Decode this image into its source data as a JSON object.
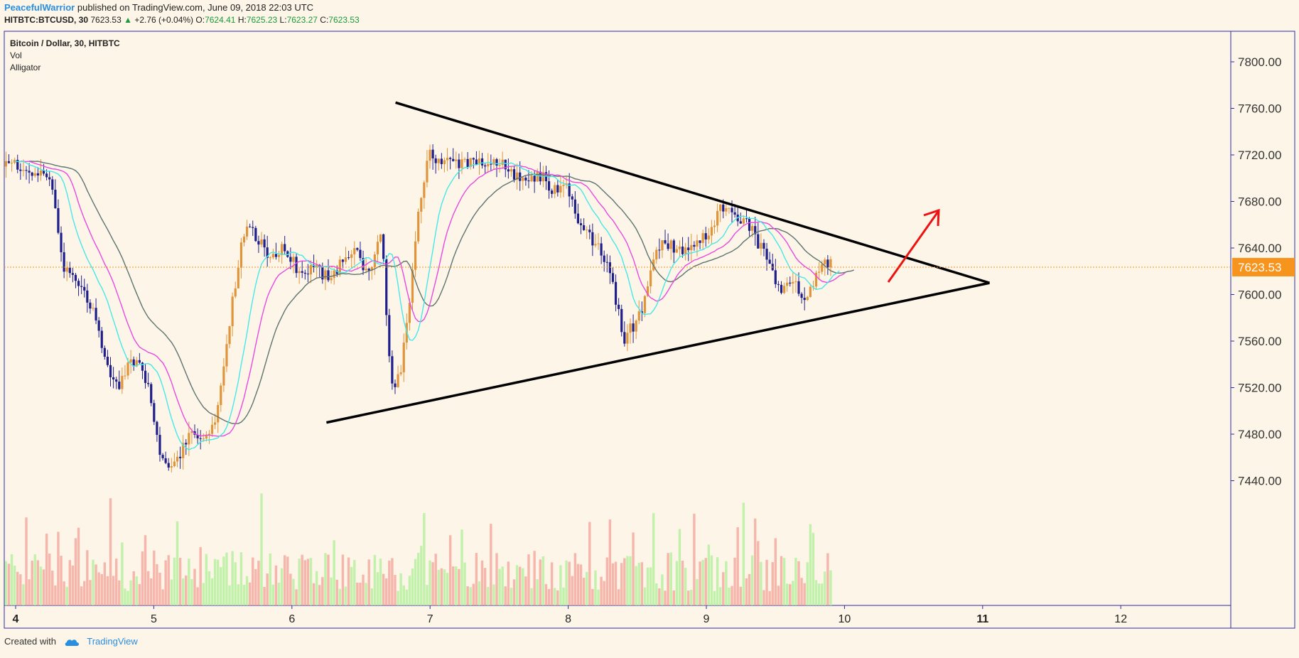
{
  "header": {
    "author": "PeacefulWarrior",
    "published": "published on TradingView.com, June 09, 2018 22:03 UTC",
    "symbol_line": "HITBTC:BTCUSD, 30",
    "last": "7623.53",
    "change": "+2.76 (+0.04%)",
    "o_label": "O:",
    "o": "7624.41",
    "h_label": "H:",
    "h": "7625.23",
    "l_label": "L:",
    "l": "7623.27",
    "c_label": "C:",
    "c": "7623.53"
  },
  "legend": {
    "title": "Bitcoin / Dollar, 30, HITBTC",
    "vol": "Vol",
    "indicator": "Alligator"
  },
  "footer": {
    "created_with": "Created with",
    "brand": "TradingView"
  },
  "colors": {
    "background": "#fdf5e8",
    "up": "#e0953a",
    "down": "#1f1f8c",
    "vol_up": "#b7f0a0",
    "vol_down": "#f5aaa0",
    "jaw": "#5d7470",
    "teeth": "#e84adf",
    "lips": "#46e8e8",
    "price_tag": "#f7941d",
    "arrow": "#ee1111",
    "frame": "#2a2aa8"
  },
  "chart_data": {
    "type": "candlestick",
    "title": "Bitcoin / Dollar, 30, HITBTC",
    "x_ticks": [
      "4",
      "5",
      "6",
      "7",
      "8",
      "9",
      "10",
      "11",
      "12"
    ],
    "y_ticks": [
      "7800.00",
      "7760.00",
      "7720.00",
      "7680.00",
      "7640.00",
      "7600.00",
      "7560.00",
      "7520.00",
      "7480.00",
      "7440.00"
    ],
    "y_tick_values": [
      7800,
      7760,
      7720,
      7680,
      7640,
      7600,
      7560,
      7520,
      7480,
      7440
    ],
    "ylim": [
      7410,
      7820
    ],
    "xlim": [
      3.93,
      12.8
    ],
    "current_price": 7623.53,
    "current_price_label": "7623.53",
    "indicators": [
      "Vol",
      "Alligator"
    ],
    "close_path_days": [
      3.93,
      4.05,
      4.15,
      4.25,
      4.35,
      4.45,
      4.55,
      4.65,
      4.75,
      4.85,
      4.95,
      5.05,
      5.15,
      5.25,
      5.35,
      5.45,
      5.55,
      5.65,
      5.75,
      5.85,
      5.95,
      6.05,
      6.15,
      6.25,
      6.35,
      6.45,
      6.55,
      6.65,
      6.72,
      6.78,
      6.85,
      6.92,
      7.0,
      7.1,
      7.2,
      7.3,
      7.4,
      7.5,
      7.6,
      7.7,
      7.8,
      7.9,
      8.0,
      8.1,
      8.2,
      8.3,
      8.4,
      8.48,
      8.55,
      8.62,
      8.7,
      8.8,
      8.9,
      9.0,
      9.1,
      9.2,
      9.3,
      9.4,
      9.5,
      9.55,
      9.62,
      9.7,
      9.78,
      9.85,
      9.9
    ],
    "close_path_prices": [
      7710,
      7712,
      7705,
      7700,
      7620,
      7610,
      7590,
      7540,
      7520,
      7545,
      7525,
      7455,
      7455,
      7480,
      7470,
      7490,
      7580,
      7655,
      7650,
      7630,
      7640,
      7620,
      7625,
      7615,
      7625,
      7640,
      7620,
      7650,
      7520,
      7530,
      7590,
      7680,
      7720,
      7715,
      7710,
      7712,
      7712,
      7712,
      7705,
      7702,
      7702,
      7690,
      7690,
      7655,
      7645,
      7625,
      7560,
      7575,
      7590,
      7635,
      7645,
      7640,
      7640,
      7650,
      7672,
      7670,
      7660,
      7640,
      7610,
      7605,
      7615,
      7598,
      7610,
      7625,
      7625
    ],
    "pattern": "symmetrical triangle",
    "upper_trendline_start": [
      "6.75",
      7765
    ],
    "upper_trendline_end": [
      "11.05",
      7610
    ],
    "lower_trendline_start": [
      "6.25",
      7490
    ],
    "lower_trendline_end": [
      "11.05",
      7610
    ],
    "arrow_direction": "up-right"
  }
}
